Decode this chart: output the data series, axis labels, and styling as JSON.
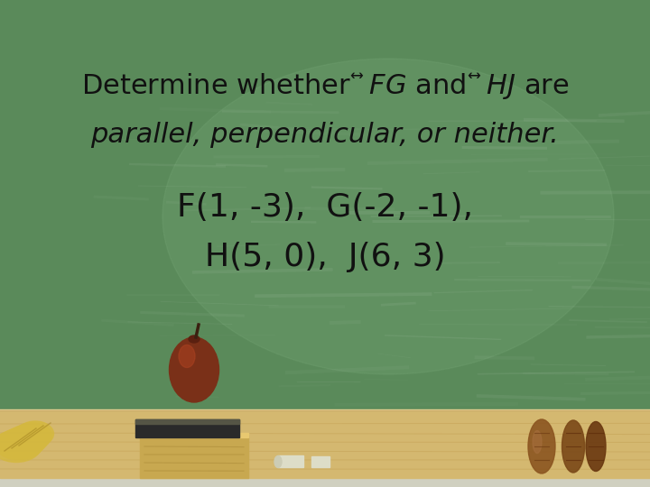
{
  "bg_color": "#5a8a5a",
  "bg_color_light": "#78a878",
  "text_color": "#111111",
  "ledge_color": "#d4b870",
  "ledge_dark": "#b89840",
  "ledge_white": "#e8e8e0",
  "apple_color": "#7a3018",
  "apple_highlight": "#a84020",
  "eraser_color": "#444444",
  "chalk_color": "#ddddc8",
  "book_color1": "#c87030",
  "book_color2": "#a85820",
  "line1": "Determine whether $\\overleftrightarrow{FG}$ and $\\overleftrightarrow{HJ}$ are",
  "line2": "parallel, perpendicular, or neither.",
  "line3": "F(1, -3),  G(-2, -1),",
  "line4": "H(5, 0),  J(6, 3)",
  "font_size_line12": 22,
  "font_size_line34": 26,
  "fig_width": 7.2,
  "fig_height": 5.4,
  "dpi": 100
}
